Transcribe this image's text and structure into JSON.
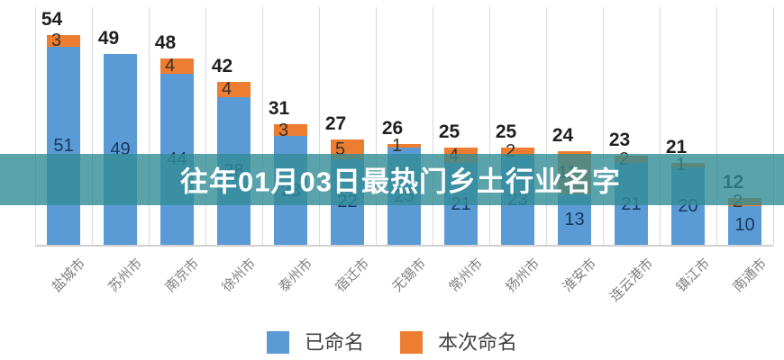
{
  "overlay": {
    "title": "往年01月03日最热门乡土行业名字",
    "band_color": "#328C96"
  },
  "legend": {
    "items": [
      {
        "label": "已命名",
        "color": "#5B9BD5"
      },
      {
        "label": "本次命名",
        "color": "#ED7D31"
      }
    ]
  },
  "chart_data": {
    "type": "bar",
    "stacked": true,
    "title": "往年01月03日最热门乡土行业名字",
    "categories": [
      "盐城市",
      "苏州市",
      "南京市",
      "徐州市",
      "泰州市",
      "宿迁市",
      "无锡市",
      "常州市",
      "扬州市",
      "淮安市",
      "连云港市",
      "镇江市",
      "南通市"
    ],
    "series": [
      {
        "name": "已命名",
        "color": "#5B9BD5",
        "values": [
          51,
          49,
          44,
          38,
          28,
          22,
          25,
          21,
          23,
          13,
          21,
          20,
          10
        ]
      },
      {
        "name": "本次命名",
        "color": "#ED7D31",
        "values": [
          3,
          0,
          4,
          4,
          3,
          5,
          1,
          4,
          2,
          11,
          2,
          1,
          2
        ]
      }
    ],
    "totals": [
      54,
      49,
      48,
      42,
      31,
      27,
      26,
      25,
      25,
      24,
      23,
      21,
      12
    ],
    "ylim": [
      0,
      56
    ],
    "xlabel": "",
    "ylabel": "",
    "grid": "vertical-category-lines",
    "legend_position": "bottom",
    "value_labels": "segment values inside bars, totals above bars"
  },
  "colors": {
    "named_blue": "#5B9BD5",
    "new_orange": "#ED7D31",
    "total_label": "#1f1f1f",
    "blue_label": "#17375e",
    "orange_label": "#3a3228",
    "axis_text": "#7f7f7f",
    "gridline": "#d9d9d9"
  }
}
